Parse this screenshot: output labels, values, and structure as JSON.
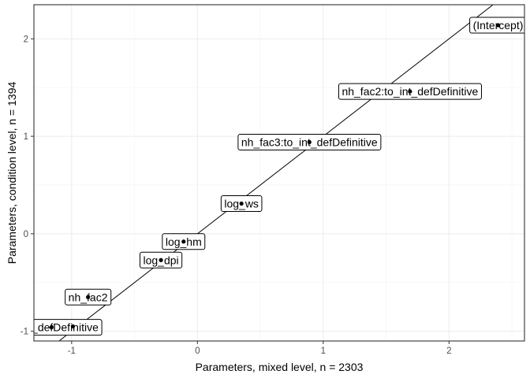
{
  "chart_data": {
    "type": "scatter",
    "xlabel": "Parameters, mixed level, n =  2303",
    "ylabel": "Parameters, condition level, n =  1394",
    "xlim": [
      -1.3,
      2.6
    ],
    "ylim": [
      -1.1,
      2.35
    ],
    "x_ticks": [
      -1,
      0,
      1,
      2
    ],
    "y_ticks": [
      -1,
      0,
      1,
      2
    ],
    "x_tick_labels": [
      "-1",
      "0",
      "1",
      "2"
    ],
    "y_tick_labels": [
      "-1",
      "0",
      "1",
      "2"
    ],
    "grid": true,
    "reference_line": "identity",
    "points": [
      {
        "label": "(Intercept)",
        "x": 2.39,
        "y": 2.14
      },
      {
        "label": "nh_fac2:to_int_defDefinitive",
        "x": 1.69,
        "y": 1.46
      },
      {
        "label": "nh_fac3:to_int_defDefinitive",
        "x": 0.89,
        "y": 0.94
      },
      {
        "label": "log_ws",
        "x": 0.35,
        "y": 0.31
      },
      {
        "label": "log_hm",
        "x": -0.11,
        "y": -0.08
      },
      {
        "label": "log_dpi",
        "x": -0.29,
        "y": -0.27
      },
      {
        "label": "nh_fac2",
        "x": -0.87,
        "y": -0.65
      },
      {
        "label": "to_int_defDefinitive",
        "x": -1.16,
        "y": -0.96
      },
      {
        "label": "",
        "x": -0.99,
        "y": -0.95
      }
    ]
  }
}
